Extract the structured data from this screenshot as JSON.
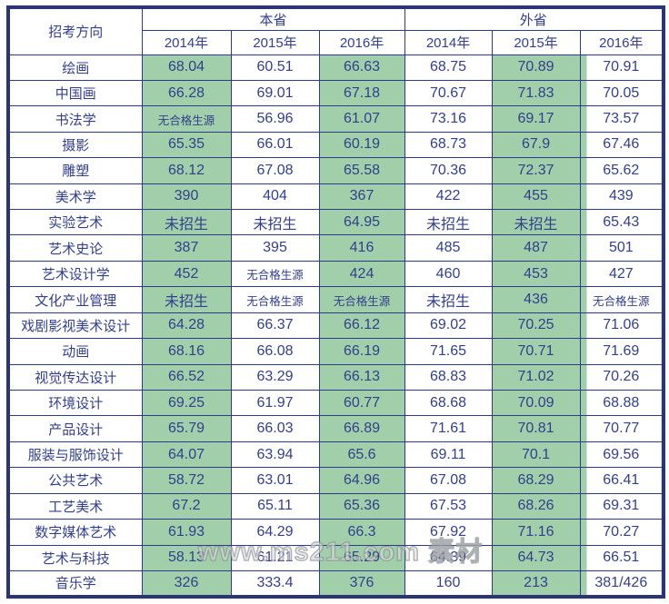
{
  "watermark": {
    "text": "www.ms211.com 素材"
  },
  "chart_data": {
    "type": "table",
    "corner_header": "招考方向",
    "groups": [
      {
        "label": "本省",
        "years": [
          "2014年",
          "2015年",
          "2016年"
        ]
      },
      {
        "label": "外省",
        "years": [
          "2014年",
          "2015年",
          "2016年"
        ]
      }
    ],
    "highlighted_value_columns": [
      0,
      2,
      4
    ],
    "colors": {
      "highlight_green": "#a0cfa9",
      "border_navy": "#2d3a8c",
      "outer_border_navy": "#2b3576",
      "text_navy": "#333e8f",
      "cell_white": "#ffffff"
    },
    "rows": [
      {
        "label": "绘画",
        "values": [
          "68.04",
          "60.51",
          "66.63",
          "68.75",
          "70.89",
          "70.91"
        ]
      },
      {
        "label": "中国画",
        "values": [
          "66.28",
          "69.01",
          "67.18",
          "70.67",
          "71.83",
          "70.05"
        ]
      },
      {
        "label": "书法学",
        "values": [
          "无合格生源",
          "56.96",
          "61.07",
          "73.16",
          "69.17",
          "73.57"
        ]
      },
      {
        "label": "摄影",
        "values": [
          "65.35",
          "66.01",
          "60.19",
          "68.73",
          "67.9",
          "67.46"
        ]
      },
      {
        "label": "雕塑",
        "values": [
          "68.12",
          "67.08",
          "65.58",
          "70.36",
          "72.37",
          "65.62"
        ]
      },
      {
        "label": "美术学",
        "values": [
          "390",
          "404",
          "367",
          "422",
          "455",
          "439"
        ]
      },
      {
        "label": "实验艺术",
        "values": [
          "未招生",
          "未招生",
          "64.95",
          "未招生",
          "未招生",
          "65.43"
        ]
      },
      {
        "label": "艺术史论",
        "values": [
          "387",
          "395",
          "416",
          "485",
          "487",
          "501"
        ]
      },
      {
        "label": "艺术设计学",
        "values": [
          "452",
          "无合格生源",
          "424",
          "460",
          "453",
          "427"
        ]
      },
      {
        "label": "文化产业管理",
        "values": [
          "未招生",
          "无合格生源",
          "无合格生源",
          "未招生",
          "436",
          "无合格生源"
        ]
      },
      {
        "label": "戏剧影视美术设计",
        "values": [
          "64.28",
          "66.37",
          "66.12",
          "69.02",
          "70.25",
          "71.06"
        ]
      },
      {
        "label": "动画",
        "values": [
          "68.16",
          "66.08",
          "66.19",
          "71.65",
          "70.71",
          "71.69"
        ]
      },
      {
        "label": "视觉传达设计",
        "values": [
          "66.52",
          "63.29",
          "66.13",
          "68.83",
          "71.02",
          "70.26"
        ]
      },
      {
        "label": "环境设计",
        "values": [
          "69.25",
          "61.97",
          "60.77",
          "68.68",
          "70.09",
          "68.88"
        ]
      },
      {
        "label": "产品设计",
        "values": [
          "65.79",
          "66.03",
          "66.89",
          "71.61",
          "70.81",
          "70.77"
        ]
      },
      {
        "label": "服装与服饰设计",
        "values": [
          "64.07",
          "63.94",
          "65.6",
          "69.11",
          "70.1",
          "69.56"
        ]
      },
      {
        "label": "公共艺术",
        "values": [
          "58.72",
          "63.01",
          "64.96",
          "67.08",
          "68.29",
          "66.41"
        ]
      },
      {
        "label": "工艺美术",
        "values": [
          "67.2",
          "65.11",
          "65.36",
          "67.53",
          "68.26",
          "69.31"
        ]
      },
      {
        "label": "数字媒体艺术",
        "values": [
          "61.93",
          "64.29",
          "66.3",
          "67.92",
          "71.16",
          "70.27"
        ]
      },
      {
        "label": "艺术与科技",
        "values": [
          "58.13",
          "61.21",
          "65.29",
          "64.39",
          "64.73",
          "66.51"
        ]
      },
      {
        "label": "音乐学",
        "values": [
          "326",
          "333.4",
          "376",
          "160",
          "213",
          "381/426"
        ]
      }
    ]
  }
}
